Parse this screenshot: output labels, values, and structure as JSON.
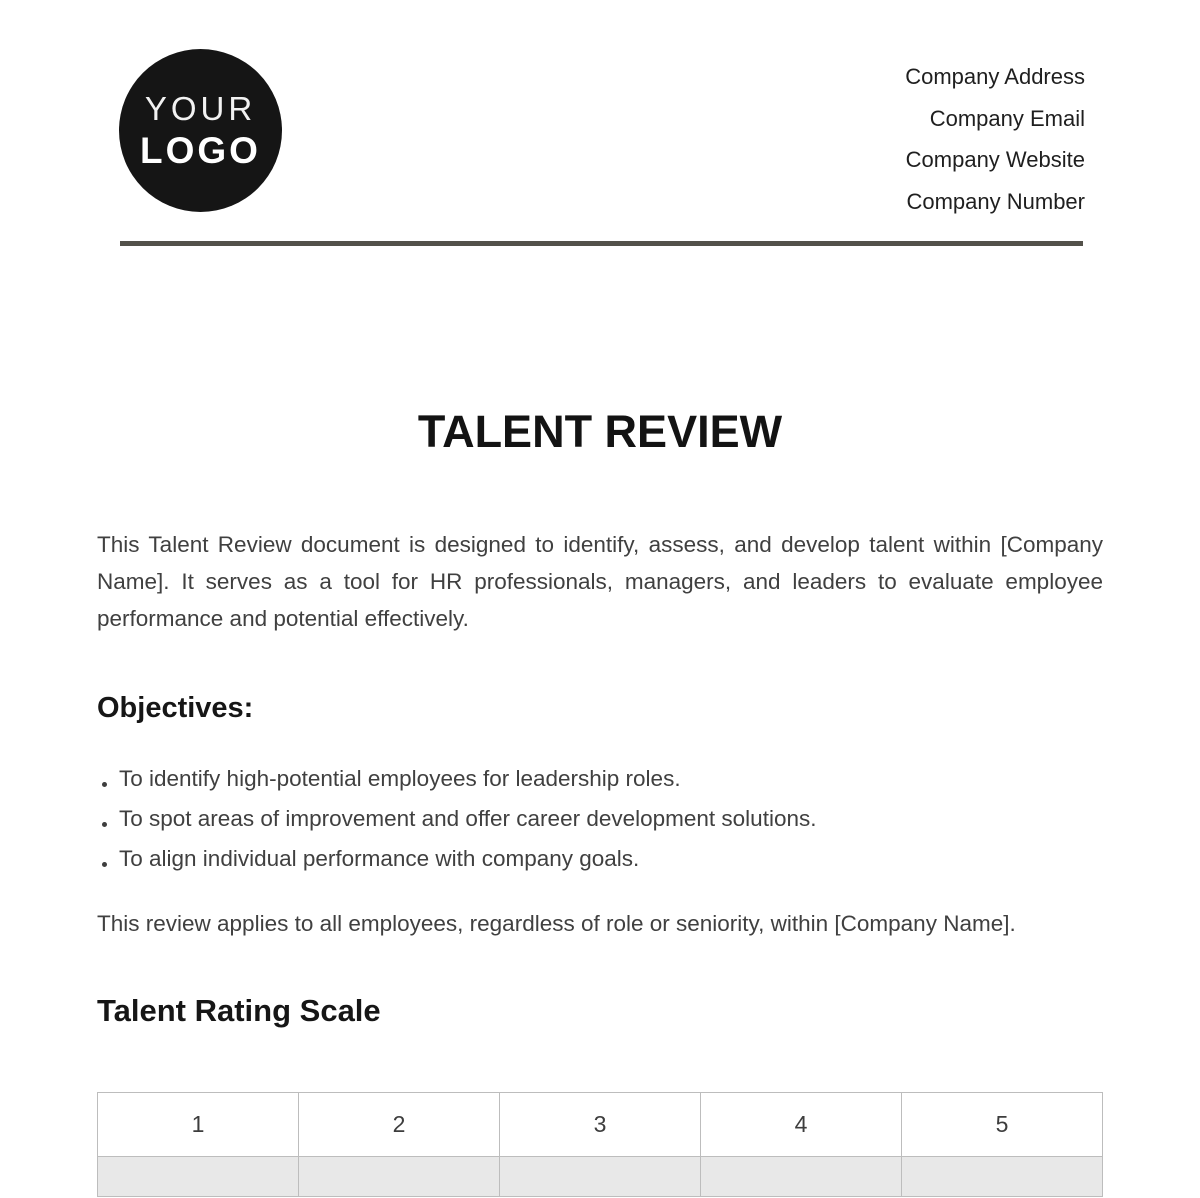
{
  "logo": {
    "line1": "YOUR",
    "line2": "LOGO"
  },
  "contact": {
    "items": [
      "Company Address",
      "Company Email",
      "Company Website",
      "Company Number"
    ]
  },
  "title": "TALENT REVIEW",
  "intro": "This Talent Review document is designed to identify, assess, and develop talent within [Company Name]. It serves as a tool for HR professionals, managers, and leaders to evaluate employee performance and potential effectively.",
  "objectives": {
    "heading": "Objectives:",
    "items": [
      "To identify high-potential employees for leadership roles.",
      "To spot areas of improvement and offer career development solutions.",
      "To align individual performance with company goals."
    ]
  },
  "scope": "This review applies to all employees, regardless of role or seniority, within [Company Name].",
  "rating": {
    "heading": "Talent Rating Scale",
    "columns": [
      "1",
      "2",
      "3",
      "4",
      "5"
    ]
  },
  "colors": {
    "logo_background": "#151515",
    "divider": "#53514a",
    "heading_text": "#161616",
    "body_text": "#404040",
    "table_border": "#bdbdbd",
    "clipped_row_background": "#e8e8e8"
  }
}
